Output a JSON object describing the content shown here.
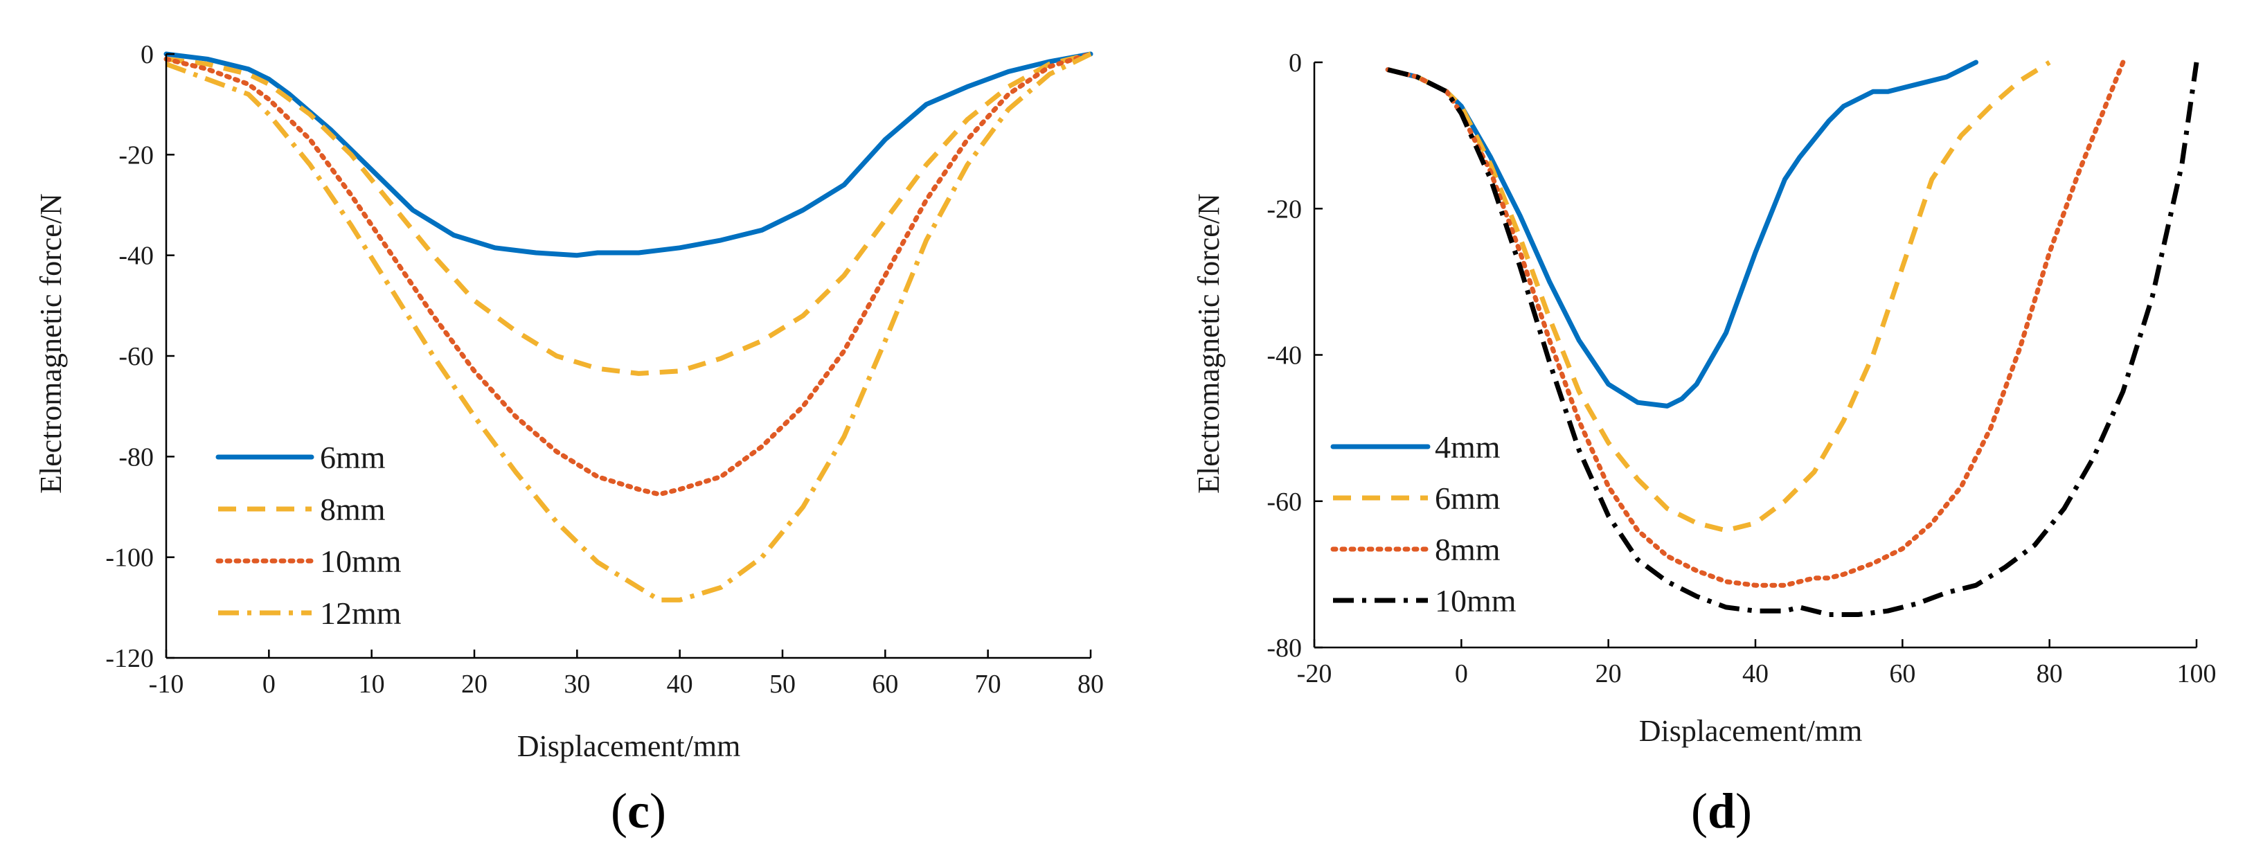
{
  "chart_data": [
    {
      "type": "line",
      "panel_label": "c",
      "xlabel": "Displacement/mm",
      "ylabel": "Electromagnetic force/N",
      "xlim": [
        -10,
        80
      ],
      "ylim": [
        -120,
        0
      ],
      "xticks": [
        -10,
        0,
        10,
        20,
        30,
        40,
        50,
        60,
        70,
        80
      ],
      "yticks": [
        -120,
        -100,
        -80,
        -60,
        -40,
        -20,
        0
      ],
      "legend_position": "bottom-left",
      "series": [
        {
          "name": "6mm",
          "color": "#0070c0",
          "style": "solid",
          "x": [
            -10,
            -6,
            -2,
            0,
            2,
            6,
            10,
            14,
            18,
            22,
            26,
            30,
            32,
            36,
            40,
            44,
            48,
            52,
            56,
            60,
            64,
            68,
            72,
            76,
            80
          ],
          "y": [
            0,
            -1,
            -3,
            -5,
            -8,
            -15,
            -23,
            -31,
            -36,
            -38.5,
            -39.5,
            -40,
            -39.5,
            -39.5,
            -38.5,
            -37,
            -35,
            -31,
            -26,
            -17,
            -10,
            -6.5,
            -3.5,
            -1.5,
            0
          ]
        },
        {
          "name": "8mm",
          "color": "#f2b22e",
          "style": "dashed",
          "x": [
            -10,
            -6,
            -2,
            0,
            4,
            8,
            12,
            16,
            20,
            24,
            28,
            32,
            36,
            40,
            44,
            48,
            52,
            56,
            60,
            64,
            68,
            72,
            76,
            80
          ],
          "y": [
            -1,
            -2,
            -4,
            -6,
            -12,
            -20,
            -30,
            -40,
            -49,
            -55,
            -60,
            -62.5,
            -63.5,
            -63,
            -60.5,
            -57,
            -52,
            -44,
            -33,
            -22,
            -13,
            -6.5,
            -2,
            0
          ]
        },
        {
          "name": "10mm",
          "color": "#e05a24",
          "style": "dotted",
          "x": [
            -10,
            -6,
            -2,
            0,
            4,
            8,
            12,
            16,
            20,
            24,
            28,
            32,
            36,
            38,
            40,
            44,
            48,
            52,
            56,
            60,
            64,
            68,
            72,
            76,
            80
          ],
          "y": [
            -1,
            -3,
            -6,
            -9,
            -17,
            -28,
            -40,
            -52,
            -63,
            -72,
            -79,
            -84,
            -86.5,
            -87.5,
            -86.5,
            -84,
            -78,
            -70,
            -59,
            -44,
            -29,
            -17,
            -8,
            -2.5,
            0
          ]
        },
        {
          "name": "12mm",
          "color": "#f2b22e",
          "style": "dashdot",
          "x": [
            -10,
            -6,
            -2,
            0,
            4,
            8,
            12,
            16,
            20,
            24,
            28,
            32,
            36,
            38,
            40,
            44,
            48,
            52,
            56,
            60,
            64,
            68,
            72,
            76,
            80
          ],
          "y": [
            -2,
            -5,
            -8,
            -12,
            -22,
            -34,
            -47,
            -60,
            -72,
            -83,
            -93,
            -101,
            -106,
            -108.5,
            -108.5,
            -106,
            -100,
            -90,
            -76,
            -57,
            -37,
            -22,
            -11,
            -4,
            0
          ]
        }
      ]
    },
    {
      "type": "line",
      "panel_label": "d",
      "xlabel": "Displacement/mm",
      "ylabel": "Electromagnetic force/N",
      "xlim": [
        -20,
        100
      ],
      "ylim": [
        -80,
        0
      ],
      "xticks": [
        -20,
        0,
        20,
        40,
        60,
        80,
        100
      ],
      "yticks": [
        -80,
        -60,
        -40,
        -20,
        0
      ],
      "legend_position": "bottom-left",
      "series": [
        {
          "name": "4mm",
          "color": "#0070c0",
          "style": "solid",
          "x": [
            -10,
            -6,
            -2,
            0,
            4,
            8,
            12,
            16,
            20,
            24,
            28,
            30,
            32,
            36,
            40,
            44,
            46,
            50,
            52,
            56,
            58,
            62,
            66,
            68,
            70
          ],
          "y": [
            -1,
            -2,
            -4,
            -6,
            -13,
            -21,
            -30,
            -38,
            -44,
            -46.5,
            -47,
            -46,
            -44,
            -37,
            -26,
            -16,
            -13,
            -8,
            -6,
            -4,
            -4,
            -3,
            -2,
            -1,
            0
          ]
        },
        {
          "name": "6mm",
          "color": "#f2b22e",
          "style": "dashed",
          "x": [
            -10,
            -6,
            -2,
            0,
            4,
            8,
            12,
            16,
            20,
            24,
            28,
            32,
            36,
            40,
            44,
            48,
            52,
            56,
            60,
            64,
            68,
            72,
            76,
            80
          ],
          "y": [
            -1,
            -2,
            -4,
            -6,
            -14,
            -24,
            -35,
            -45,
            -52,
            -57,
            -61,
            -63,
            -64,
            -63,
            -60,
            -56,
            -49,
            -40,
            -28,
            -16,
            -10,
            -6,
            -2.5,
            0
          ]
        },
        {
          "name": "8mm",
          "color": "#e05a24",
          "style": "dotted",
          "x": [
            -10,
            -6,
            -2,
            0,
            4,
            8,
            12,
            16,
            20,
            24,
            28,
            32,
            36,
            40,
            44,
            48,
            50,
            52,
            56,
            60,
            64,
            68,
            72,
            76,
            80,
            84,
            88,
            90
          ],
          "y": [
            -1,
            -2,
            -4,
            -7,
            -15,
            -26,
            -38,
            -49,
            -58,
            -64,
            -67.5,
            -69.5,
            -71,
            -71.5,
            -71.5,
            -70.5,
            -70.5,
            -70,
            -68.5,
            -66.5,
            -63,
            -58,
            -50,
            -39,
            -26,
            -15,
            -5,
            0
          ]
        },
        {
          "name": "10mm",
          "color": "#000000",
          "style": "dashdot",
          "x": [
            -10,
            -6,
            -2,
            0,
            4,
            8,
            12,
            16,
            20,
            24,
            28,
            32,
            36,
            40,
            44,
            46,
            48,
            50,
            54,
            58,
            62,
            66,
            70,
            74,
            78,
            82,
            86,
            90,
            94,
            98,
            100
          ],
          "y": [
            -1,
            -2,
            -4,
            -7,
            -16,
            -28,
            -41,
            -53,
            -62,
            -68,
            -71,
            -73,
            -74.5,
            -75,
            -75,
            -74.5,
            -75,
            -75.5,
            -75.5,
            -75,
            -74,
            -72.5,
            -71.5,
            -69,
            -66,
            -61,
            -54,
            -45,
            -32,
            -14,
            0
          ]
        }
      ]
    }
  ]
}
